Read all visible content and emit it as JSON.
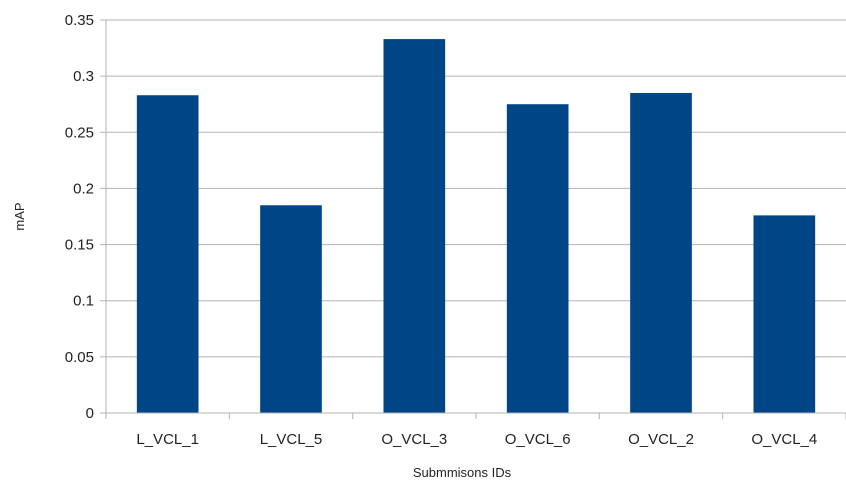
{
  "chart_data": {
    "type": "bar",
    "categories": [
      "L_VCL_1",
      "L_VCL_5",
      "O_VCL_3",
      "O_VCL_6",
      "O_VCL_2",
      "O_VCL_4"
    ],
    "values": [
      0.283,
      0.185,
      0.333,
      0.275,
      0.285,
      0.176
    ],
    "title": "",
    "xlabel": "Submmisons IDs",
    "ylabel": "mAP",
    "ylim": [
      0,
      0.35
    ],
    "yticks": [
      "0",
      "0.05",
      "0.1",
      "0.15",
      "0.2",
      "0.25",
      "0.3",
      "0.35"
    ],
    "grid": true,
    "bar_color": "#004586",
    "legend": "none"
  }
}
